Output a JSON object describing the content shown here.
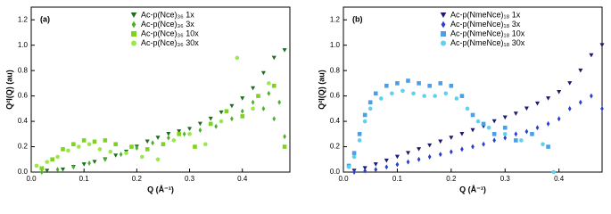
{
  "chart_data": [
    {
      "type": "scatter",
      "panel_label": "(a)",
      "x_label": "Q (Å⁻¹)",
      "y_label": "Q²I(Q) (au)",
      "xlim": [
        0,
        0.49
      ],
      "ylim": [
        0,
        1.3
      ],
      "xticks": [
        {
          "value": 0,
          "label": "0.0"
        },
        0.1,
        0.2,
        0.3,
        0.4
      ],
      "yticks": [
        {
          "value": 0,
          "label": "0.0"
        },
        0.2,
        0.4,
        0.6,
        0.8,
        {
          "value": 1,
          "label": "1.0"
        },
        1.2
      ],
      "series": [
        {
          "name": "Ac-p(Nce)₃₆ 1x",
          "color": "#1f6b1f",
          "marker": "triangle-down",
          "x": [
            0.03,
            0.06,
            0.08,
            0.1,
            0.12,
            0.14,
            0.16,
            0.18,
            0.2,
            0.22,
            0.24,
            0.26,
            0.28,
            0.3,
            0.32,
            0.34,
            0.36,
            0.38,
            0.4,
            0.42,
            0.44,
            0.46,
            0.48
          ],
          "values": [
            0.01,
            0.02,
            0.04,
            0.06,
            0.08,
            0.1,
            0.13,
            0.16,
            0.2,
            0.24,
            0.27,
            0.3,
            0.32,
            0.34,
            0.38,
            0.42,
            0.47,
            0.52,
            0.58,
            0.66,
            0.78,
            0.9,
            0.96
          ]
        },
        {
          "name": "Ac-p(Nce)₃₆ 3x",
          "color": "#4caf2a",
          "marker": "diamond",
          "x": [
            0.02,
            0.05,
            0.08,
            0.11,
            0.14,
            0.17,
            0.2,
            0.23,
            0.26,
            0.29,
            0.32,
            0.35,
            0.38,
            0.4,
            0.42,
            0.44,
            0.45,
            0.46,
            0.47,
            0.48
          ],
          "values": [
            0.0,
            0.02,
            0.04,
            0.07,
            0.1,
            0.14,
            0.19,
            0.23,
            0.27,
            0.3,
            0.33,
            0.36,
            0.42,
            0.48,
            0.55,
            0.5,
            0.62,
            0.42,
            0.55,
            0.28
          ]
        },
        {
          "name": "Ac-p(Nce)₃₆ 10x",
          "color": "#7ed321",
          "marker": "square",
          "x": [
            0.02,
            0.04,
            0.06,
            0.08,
            0.1,
            0.12,
            0.14,
            0.16,
            0.19,
            0.22,
            0.25,
            0.28,
            0.31,
            0.34,
            0.37,
            0.4,
            0.43,
            0.46,
            0.48
          ],
          "values": [
            0.03,
            0.1,
            0.18,
            0.22,
            0.25,
            0.24,
            0.25,
            0.22,
            0.2,
            0.18,
            0.22,
            0.3,
            0.2,
            0.38,
            0.48,
            0.44,
            0.6,
            0.68,
            0.2
          ]
        },
        {
          "name": "Ac-p(Nce)₃₆ 30x",
          "color": "#9be84a",
          "marker": "circle",
          "x": [
            0.01,
            0.03,
            0.05,
            0.07,
            0.09,
            0.11,
            0.13,
            0.15,
            0.18,
            0.21,
            0.24,
            0.27,
            0.3,
            0.33,
            0.36,
            0.39,
            0.42,
            0.45
          ],
          "values": [
            0.05,
            0.08,
            0.12,
            0.17,
            0.2,
            0.22,
            0.18,
            0.16,
            0.15,
            0.12,
            0.1,
            0.25,
            0.3,
            0.22,
            0.4,
            0.9,
            0.5,
            0.7
          ]
        }
      ]
    },
    {
      "type": "scatter",
      "panel_label": "(b)",
      "x_label": "Q (Å⁻¹)",
      "y_label": "Q²I(Q) (au)",
      "xlim": [
        0,
        0.48
      ],
      "ylim": [
        0,
        1.3
      ],
      "xticks": [
        {
          "value": 0,
          "label": "0.0"
        },
        0.1,
        0.2,
        0.3,
        0.4
      ],
      "yticks": [
        {
          "value": 0,
          "label": "0.0"
        },
        0.2,
        0.4,
        0.6,
        0.8,
        {
          "value": 1,
          "label": "1.0"
        },
        1.2
      ],
      "series": [
        {
          "name": "Ac-p(NmeNce)₁₈ 1x",
          "color": "#1a1a6e",
          "marker": "triangle-down",
          "x": [
            0.02,
            0.04,
            0.06,
            0.08,
            0.1,
            0.12,
            0.14,
            0.16,
            0.18,
            0.2,
            0.22,
            0.24,
            0.26,
            0.28,
            0.3,
            0.32,
            0.34,
            0.36,
            0.38,
            0.4,
            0.42,
            0.44,
            0.46,
            0.48
          ],
          "values": [
            0.01,
            0.03,
            0.06,
            0.09,
            0.12,
            0.15,
            0.18,
            0.21,
            0.24,
            0.27,
            0.3,
            0.33,
            0.36,
            0.4,
            0.43,
            0.46,
            0.5,
            0.54,
            0.58,
            0.63,
            0.7,
            0.8,
            0.92,
            1.0
          ]
        },
        {
          "name": "Ac-p(NmeNce)₁₈ 3x",
          "color": "#2a3fd0",
          "marker": "diamond",
          "x": [
            0.02,
            0.04,
            0.06,
            0.08,
            0.1,
            0.12,
            0.14,
            0.16,
            0.18,
            0.2,
            0.22,
            0.24,
            0.26,
            0.28,
            0.3,
            0.32,
            0.34,
            0.36,
            0.38,
            0.4,
            0.42,
            0.44,
            0.46,
            0.48
          ],
          "values": [
            0.0,
            0.01,
            0.02,
            0.04,
            0.06,
            0.08,
            0.1,
            0.12,
            0.14,
            0.16,
            0.18,
            0.2,
            0.22,
            0.25,
            0.27,
            0.3,
            0.32,
            0.35,
            0.38,
            0.42,
            0.5,
            0.55,
            0.6,
            0.5
          ]
        },
        {
          "name": "Ac-p(NmeNce)₁₈ 10x",
          "color": "#4a9fe8",
          "marker": "square",
          "x": [
            0.01,
            0.02,
            0.03,
            0.04,
            0.05,
            0.06,
            0.08,
            0.1,
            0.12,
            0.14,
            0.16,
            0.18,
            0.2,
            0.22,
            0.24,
            0.26,
            0.28,
            0.3,
            0.32,
            0.35,
            0.38
          ],
          "values": [
            0.05,
            0.15,
            0.3,
            0.45,
            0.55,
            0.62,
            0.68,
            0.7,
            0.72,
            0.7,
            0.68,
            0.7,
            0.68,
            0.6,
            0.45,
            0.38,
            0.3,
            0.35,
            0.25,
            0.3,
            0.2
          ]
        },
        {
          "name": "Ac-p(NmeNce)₁₈ 30x",
          "color": "#5fd0f0",
          "marker": "circle",
          "x": [
            0.01,
            0.02,
            0.03,
            0.04,
            0.05,
            0.07,
            0.09,
            0.11,
            0.13,
            0.15,
            0.17,
            0.19,
            0.21,
            0.23,
            0.25,
            0.27,
            0.3,
            0.33,
            0.37,
            0.39
          ],
          "values": [
            0.04,
            0.12,
            0.25,
            0.4,
            0.5,
            0.58,
            0.62,
            0.64,
            0.62,
            0.6,
            0.6,
            0.62,
            0.58,
            0.5,
            0.4,
            0.35,
            0.3,
            0.25,
            0.22,
            0.0
          ]
        }
      ]
    }
  ]
}
